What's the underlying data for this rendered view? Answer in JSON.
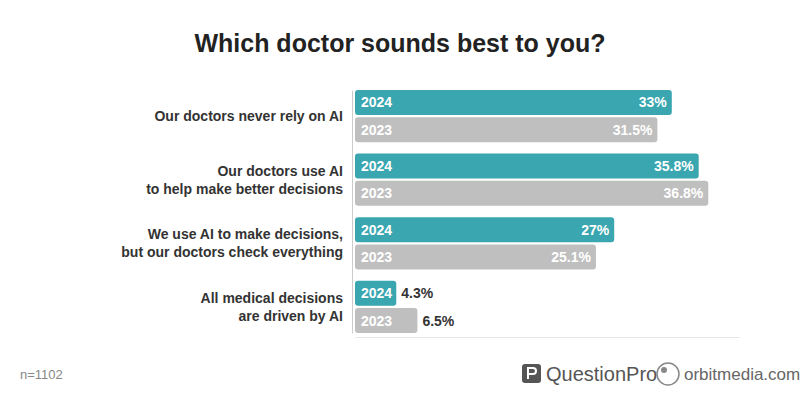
{
  "chart_data": {
    "type": "bar",
    "title": "Which doctor sounds best to you?",
    "orientation": "horizontal",
    "categories": [
      "Our doctors never rely on AI",
      "Our doctors use AI\nto help make better decisions",
      "We use AI to make decisions,\nbut our doctors check everything",
      "All medical decisions\nare driven by AI"
    ],
    "series": [
      {
        "name": "2024",
        "color": "#3aa6b0",
        "values": [
          33,
          35.8,
          27,
          4.3
        ],
        "value_labels": [
          "33%",
          "35.8%",
          "27%",
          "4.3%"
        ]
      },
      {
        "name": "2023",
        "color": "#bfbfbf",
        "values": [
          31.5,
          36.8,
          25.1,
          6.5
        ],
        "value_labels": [
          "31.5%",
          "36.8%",
          "25.1%",
          "6.5%"
        ]
      }
    ],
    "xlim": [
      0,
      40
    ],
    "data_labels": true,
    "tick_labels": "y",
    "grid": false,
    "annotations": [
      "n=1102",
      "QuestionPro",
      "orbitmedia.com"
    ]
  }
}
